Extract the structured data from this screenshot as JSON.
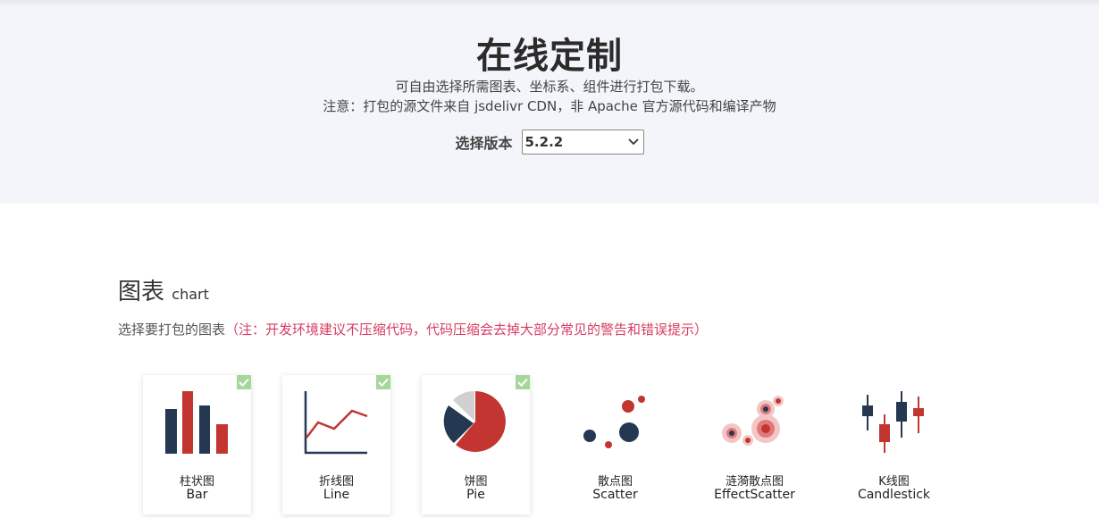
{
  "header": {
    "title": "在线定制",
    "subtitle_line1": "可自由选择所需图表、坐标系、组件进行打包下载。",
    "subtitle_line2": "注意：打包的源文件来自 jsdelivr CDN，非 Apache 官方源代码和编译产物",
    "version_label": "选择版本",
    "version_selected": "5.2.2"
  },
  "section": {
    "title": "图表",
    "title_en": "chart",
    "desc": "选择要打包的图表",
    "note": "（注：开发环境建议不压缩代码，代码压缩会去掉大部分常见的警告和错误提示）"
  },
  "charts": [
    {
      "cn": "柱状图",
      "en": "Bar",
      "selected": true,
      "icon": "bar-chart-icon"
    },
    {
      "cn": "折线图",
      "en": "Line",
      "selected": true,
      "icon": "line-chart-icon"
    },
    {
      "cn": "饼图",
      "en": "Pie",
      "selected": true,
      "icon": "pie-chart-icon"
    },
    {
      "cn": "散点图",
      "en": "Scatter",
      "selected": false,
      "icon": "scatter-chart-icon"
    },
    {
      "cn": "涟漪散点图",
      "en": "EffectScatter",
      "selected": false,
      "icon": "effect-scatter-icon"
    },
    {
      "cn": "K线图",
      "en": "Candlestick",
      "selected": false,
      "icon": "candlestick-icon"
    }
  ],
  "colors": {
    "dark": "#253852",
    "red": "#c23531",
    "gray": "#d0d0d0",
    "check": "#a5d79b"
  }
}
